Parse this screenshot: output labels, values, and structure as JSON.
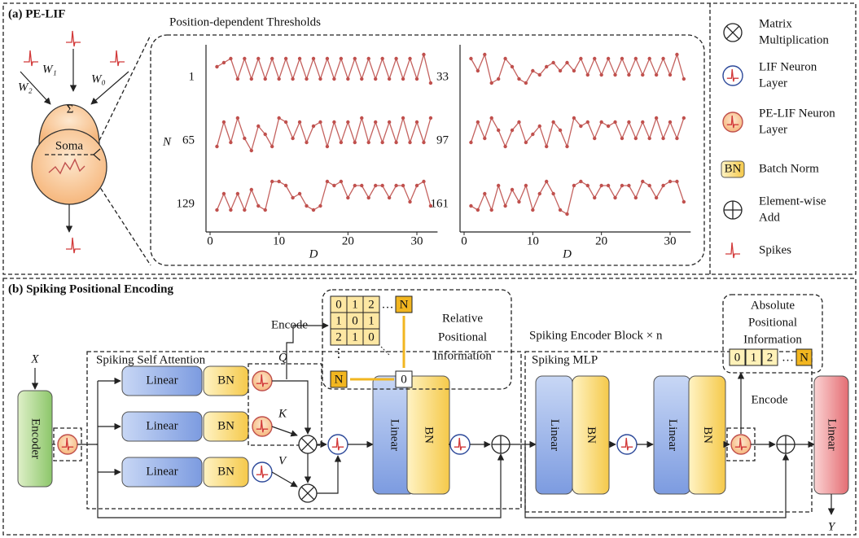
{
  "panel_a": {
    "title": "(a) PE-LIF",
    "weights": [
      "W₂",
      "W₁",
      "W₀"
    ],
    "sum": "Σ",
    "soma": "Soma"
  },
  "plots": {
    "title": "Position-dependent Thresholds",
    "y_label": "N",
    "x_label": "D",
    "xlim": [
      0,
      33
    ],
    "xticks": [
      0,
      10,
      20,
      30
    ],
    "d": [
      1,
      2,
      3,
      4,
      5,
      6,
      7,
      8,
      9,
      10,
      11,
      12,
      13,
      14,
      15,
      16,
      17,
      18,
      19,
      20,
      21,
      22,
      23,
      24,
      25,
      26,
      27,
      28,
      29,
      30,
      31,
      32
    ],
    "panels": [
      {
        "rows": [
          {
            "label": "1",
            "values": [
              0.6,
              0.7,
              0.8,
              0.3,
              0.8,
              0.3,
              0.8,
              0.3,
              0.8,
              0.3,
              0.8,
              0.3,
              0.8,
              0.3,
              0.8,
              0.3,
              0.8,
              0.3,
              0.8,
              0.3,
              0.8,
              0.3,
              0.8,
              0.3,
              0.8,
              0.3,
              0.8,
              0.3,
              0.8,
              0.3,
              0.9,
              0.2
            ]
          },
          {
            "label": "65",
            "values": [
              0.2,
              0.8,
              0.3,
              0.9,
              0.4,
              0.1,
              0.7,
              0.5,
              0.2,
              0.9,
              0.8,
              0.4,
              0.8,
              0.3,
              0.7,
              0.8,
              0.2,
              0.8,
              0.3,
              0.8,
              0.3,
              0.9,
              0.3,
              0.8,
              0.3,
              0.8,
              0.3,
              0.9,
              0.3,
              0.8,
              0.3,
              0.9
            ]
          },
          {
            "label": "129",
            "values": [
              0.2,
              0.6,
              0.2,
              0.6,
              0.2,
              0.7,
              0.3,
              0.2,
              0.9,
              0.9,
              0.8,
              0.5,
              0.6,
              0.3,
              0.2,
              0.3,
              0.9,
              0.8,
              0.9,
              0.5,
              0.8,
              0.8,
              0.5,
              0.8,
              0.8,
              0.5,
              0.8,
              0.8,
              0.4,
              0.8,
              0.9,
              0.3
            ]
          }
        ]
      },
      {
        "rows": [
          {
            "label": "33",
            "values": [
              0.8,
              0.5,
              0.9,
              0.2,
              0.3,
              0.8,
              0.6,
              0.3,
              0.2,
              0.5,
              0.4,
              0.6,
              0.7,
              0.5,
              0.7,
              0.5,
              0.8,
              0.4,
              0.8,
              0.4,
              0.8,
              0.4,
              0.8,
              0.4,
              0.8,
              0.4,
              0.8,
              0.4,
              0.8,
              0.4,
              0.9,
              0.3
            ]
          },
          {
            "label": "97",
            "values": [
              0.3,
              0.8,
              0.4,
              0.9,
              0.6,
              0.2,
              0.6,
              0.8,
              0.3,
              0.5,
              0.7,
              0.2,
              0.8,
              0.6,
              0.2,
              0.9,
              0.7,
              0.8,
              0.4,
              0.8,
              0.7,
              0.8,
              0.4,
              0.8,
              0.4,
              0.8,
              0.4,
              0.9,
              0.4,
              0.8,
              0.4,
              0.9
            ]
          },
          {
            "label": "161",
            "values": [
              0.3,
              0.2,
              0.6,
              0.2,
              0.8,
              0.3,
              0.7,
              0.4,
              0.8,
              0.2,
              0.6,
              0.9,
              0.6,
              0.2,
              0.1,
              0.8,
              0.9,
              0.8,
              0.5,
              0.8,
              0.8,
              0.5,
              0.8,
              0.8,
              0.5,
              0.9,
              0.8,
              0.5,
              0.8,
              0.9,
              0.9,
              0.4
            ]
          }
        ]
      }
    ]
  },
  "legend": {
    "bn_icon": "BN",
    "items": [
      [
        "Matrix",
        "Multiplication"
      ],
      [
        "LIF Neuron",
        "Layer"
      ],
      [
        "PE-LIF Neuron",
        "Layer"
      ],
      [
        "Batch Norm"
      ],
      [
        "Element-wise",
        "Add"
      ],
      [
        "Spikes"
      ]
    ]
  },
  "panel_b": {
    "title": "(b) Spiking Positional Encoding",
    "input": "X",
    "output": "Y",
    "encoder": "Encoder",
    "attention": {
      "title": "Spiking Self Attention",
      "rows": [
        {
          "linear": "Linear",
          "bn": "BN",
          "label": "Q"
        },
        {
          "linear": "Linear",
          "bn": "BN",
          "label": "K"
        },
        {
          "linear": "Linear",
          "bn": "BN",
          "label": "V"
        }
      ],
      "linear": "Linear",
      "bn": "BN"
    },
    "encoder_block": "Spiking Encoder Block × n",
    "mlp": {
      "title": "Spiking MLP",
      "linear": [
        "Linear",
        "Linear"
      ],
      "bn": [
        "BN",
        "BN"
      ]
    },
    "head": "Linear",
    "relative": {
      "encode": "Encode",
      "label": [
        "Relative",
        "Positional",
        "Information"
      ],
      "matrix": [
        [
          "0",
          "1",
          "2",
          "…",
          "N"
        ],
        [
          "1",
          "0",
          "1"
        ],
        [
          "2",
          "1",
          "0"
        ],
        [
          "⋮"
        ],
        [
          "N",
          "0"
        ]
      ]
    },
    "absolute": {
      "encode": "Encode",
      "label": [
        "Absolute",
        "Positional",
        "Information"
      ],
      "cells": [
        "0",
        "1",
        "2",
        "…",
        "N"
      ]
    }
  }
}
